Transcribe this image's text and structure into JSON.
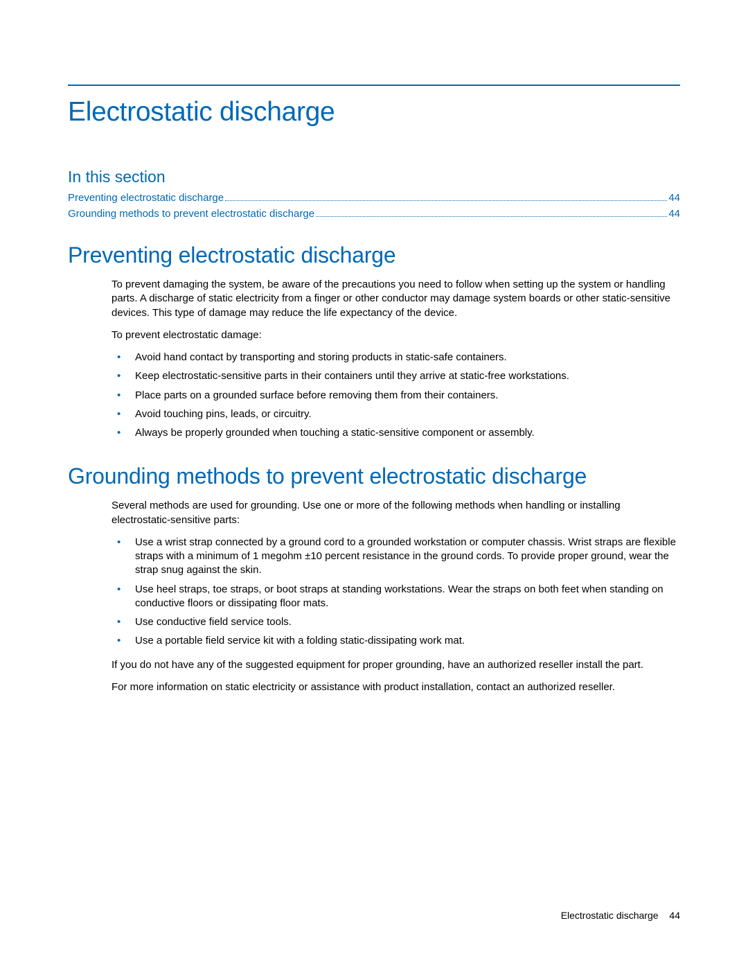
{
  "colors": {
    "accent": "#0068b5",
    "text": "#000000",
    "background": "#ffffff"
  },
  "title": "Electrostatic discharge",
  "in_this_section_label": "In this section",
  "toc": [
    {
      "label": "Preventing electrostatic discharge",
      "page": "44"
    },
    {
      "label": "Grounding methods to prevent electrostatic discharge",
      "page": "44"
    }
  ],
  "sections": {
    "preventing": {
      "heading": "Preventing electrostatic discharge",
      "para1": "To prevent damaging the system, be aware of the precautions you need to follow when setting up the system or handling parts. A discharge of static electricity from a finger or other conductor may damage system boards or other static-sensitive devices. This type of damage may reduce the life expectancy of the device.",
      "para2": "To prevent electrostatic damage:",
      "bullets": [
        "Avoid hand contact by transporting and storing products in static-safe containers.",
        "Keep electrostatic-sensitive parts in their containers until they arrive at static-free workstations.",
        "Place parts on a grounded surface before removing them from their containers.",
        "Avoid touching pins, leads, or circuitry.",
        "Always be properly grounded when touching a static-sensitive component or assembly."
      ]
    },
    "grounding": {
      "heading": "Grounding methods to prevent electrostatic discharge",
      "para1": "Several methods are used for grounding. Use one or more of the following methods when handling or installing electrostatic-sensitive parts:",
      "bullets": [
        "Use a wrist strap connected by a ground cord to a grounded workstation or computer chassis. Wrist straps are flexible straps with a minimum of 1 megohm ±10 percent resistance in the ground cords. To provide proper ground, wear the strap snug against the skin.",
        "Use heel straps, toe straps, or boot straps at standing workstations. Wear the straps on both feet when standing on conductive floors or dissipating floor mats.",
        "Use conductive field service tools.",
        "Use a portable field service kit with a folding static-dissipating work mat."
      ],
      "para2": "If you do not have any of the suggested equipment for proper grounding, have an authorized reseller install the part.",
      "para3": "For more information on static electricity or assistance with product installation, contact an authorized reseller."
    }
  },
  "footer": {
    "label": "Electrostatic discharge",
    "page": "44"
  }
}
